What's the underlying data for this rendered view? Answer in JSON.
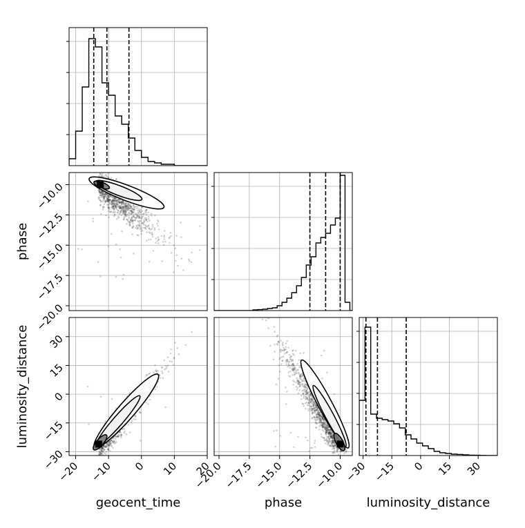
{
  "chart_data": {
    "type": "corner",
    "parameters": [
      "geocent_time",
      "phase",
      "luminosity_distance"
    ],
    "ranges": {
      "geocent_time": [
        -22,
        20
      ],
      "phase": [
        -20.4,
        -9.0
      ],
      "luminosity_distance": [
        -32,
        40
      ]
    },
    "ticks": {
      "geocent_time": [
        -20,
        -10,
        0,
        10,
        20
      ],
      "phase": [
        -20.0,
        -17.5,
        -15.0,
        -12.5,
        -10.0
      ],
      "luminosity_distance": [
        -30,
        -15,
        0,
        15,
        30
      ]
    },
    "tick_labels": {
      "geocent_time": [
        "−20",
        "−10",
        "0",
        "10",
        "20"
      ],
      "phase": [
        "−20.0",
        "−17.5",
        "−15.0",
        "−12.5",
        "−10.0"
      ],
      "luminosity_distance": [
        "−30",
        "−15",
        "0",
        "15",
        "30"
      ]
    },
    "quantiles": {
      "geocent_time": [
        -14.5,
        -10.5,
        -3.8
      ],
      "phase": [
        -12.5,
        -11.2,
        -10.0
      ],
      "luminosity_distance": [
        -28.5,
        -22.5,
        -7.5
      ]
    },
    "histograms": {
      "geocent_time": {
        "edges": [
          -22,
          -20,
          -18,
          -16,
          -14,
          -12,
          -10,
          -8,
          -6,
          -4,
          -2,
          0,
          2,
          4,
          6,
          8,
          10,
          12,
          14,
          16,
          18,
          20
        ],
        "counts": [
          0.05,
          0.25,
          0.57,
          0.92,
          0.86,
          0.6,
          0.51,
          0.36,
          0.3,
          0.2,
          0.11,
          0.06,
          0.03,
          0.02,
          0.01,
          0.01,
          0,
          0,
          0,
          0,
          0
        ]
      },
      "phase": {
        "edges": [
          -20.4,
          -20.0,
          -19.6,
          -19.2,
          -18.8,
          -18.4,
          -18.0,
          -17.6,
          -17.2,
          -16.8,
          -16.4,
          -16.0,
          -15.6,
          -15.2,
          -14.8,
          -14.4,
          -14.0,
          -13.6,
          -13.2,
          -12.8,
          -12.4,
          -12.0,
          -11.6,
          -11.2,
          -10.8,
          -10.4,
          -10.0,
          -9.6,
          -9.2,
          -9.0
        ],
        "counts": [
          0,
          0,
          0,
          0,
          0,
          0,
          0,
          0,
          0.005,
          0.007,
          0.01,
          0.015,
          0.02,
          0.035,
          0.06,
          0.09,
          0.13,
          0.18,
          0.24,
          0.33,
          0.39,
          0.49,
          0.53,
          0.56,
          0.62,
          0.67,
          0.98,
          0.06,
          0
        ]
      },
      "luminosity_distance": {
        "edges": [
          -32,
          -29,
          -26,
          -23,
          -20,
          -17,
          -14,
          -11,
          -8,
          -5,
          -2,
          1,
          4,
          7,
          10,
          13,
          16,
          19,
          22,
          25,
          28,
          31,
          34,
          37,
          40
        ],
        "counts": [
          0.4,
          0.93,
          0.3,
          0.27,
          0.26,
          0.25,
          0.23,
          0.2,
          0.15,
          0.12,
          0.09,
          0.07,
          0.05,
          0.03,
          0.02,
          0.015,
          0.01,
          0.008,
          0.005,
          0.003,
          0.002,
          0.001,
          0.0,
          0.0
        ]
      }
    },
    "scatter_correlations": {
      "geocent_time_vs_phase": "negative",
      "geocent_time_vs_luminosity_distance": "positive",
      "phase_vs_luminosity_distance": "negative"
    },
    "density_peaks": {
      "geocent_time_phase": [
        -12.5,
        -10.0
      ],
      "geocent_time_luminosity_distance": [
        -13.0,
        -26.0
      ],
      "phase_luminosity_distance": [
        -10.0,
        -26.0
      ]
    },
    "grid": true
  }
}
